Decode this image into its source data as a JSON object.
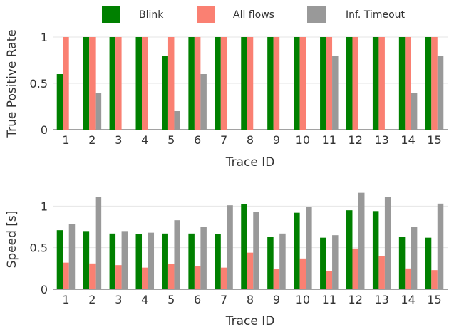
{
  "chart_data": [
    {
      "type": "bar",
      "categories": [
        "1",
        "2",
        "3",
        "4",
        "5",
        "6",
        "7",
        "8",
        "9",
        "10",
        "11",
        "12",
        "13",
        "14",
        "15"
      ],
      "series": [
        {
          "name": "Blink",
          "color": "#008000",
          "values": [
            0.6,
            1,
            1,
            1,
            0.8,
            1,
            1,
            1,
            1,
            1,
            1,
            1,
            1,
            1,
            1
          ]
        },
        {
          "name": "All flows",
          "color": "#fa8072",
          "values": [
            1,
            1,
            1,
            1,
            1,
            1,
            1,
            1,
            1,
            1,
            1,
            1,
            1,
            1,
            1
          ]
        },
        {
          "name": "Inf. Timeout",
          "color": "#999999",
          "values": [
            0,
            0.4,
            0,
            0,
            0.2,
            0.6,
            0,
            0,
            0,
            0,
            0.8,
            0,
            0,
            0.4,
            0.8
          ]
        }
      ],
      "xlabel": "Trace ID",
      "ylabel": "True Positive Rate",
      "ylim": [
        0,
        1
      ],
      "yticks": [
        "0",
        "0.5",
        "1"
      ],
      "grid": true,
      "legend": "top"
    },
    {
      "type": "bar",
      "categories": [
        "1",
        "2",
        "3",
        "4",
        "5",
        "6",
        "7",
        "8",
        "9",
        "10",
        "11",
        "12",
        "13",
        "14",
        "15"
      ],
      "series": [
        {
          "name": "Blink",
          "color": "#008000",
          "values": [
            0.71,
            0.7,
            0.67,
            0.66,
            0.67,
            0.67,
            0.66,
            1.02,
            0.63,
            0.92,
            0.62,
            0.95,
            0.94,
            0.63,
            0.62
          ]
        },
        {
          "name": "All flows",
          "color": "#fa8072",
          "values": [
            0.32,
            0.31,
            0.29,
            0.26,
            0.3,
            0.28,
            0.26,
            0.44,
            0.24,
            0.37,
            0.22,
            0.49,
            0.4,
            0.25,
            0.23
          ]
        },
        {
          "name": "Inf. Timeout",
          "color": "#999999",
          "values": [
            0.78,
            1.11,
            0.7,
            0.68,
            0.83,
            0.75,
            1.01,
            0.93,
            0.67,
            0.99,
            0.65,
            1.16,
            1.11,
            0.75,
            1.03
          ]
        }
      ],
      "xlabel": "Trace ID",
      "ylabel": "Speed [s]",
      "ylim": [
        0,
        1.2
      ],
      "yticks": [
        "0",
        "0.5",
        "1"
      ],
      "grid": true,
      "legend": "top"
    }
  ]
}
